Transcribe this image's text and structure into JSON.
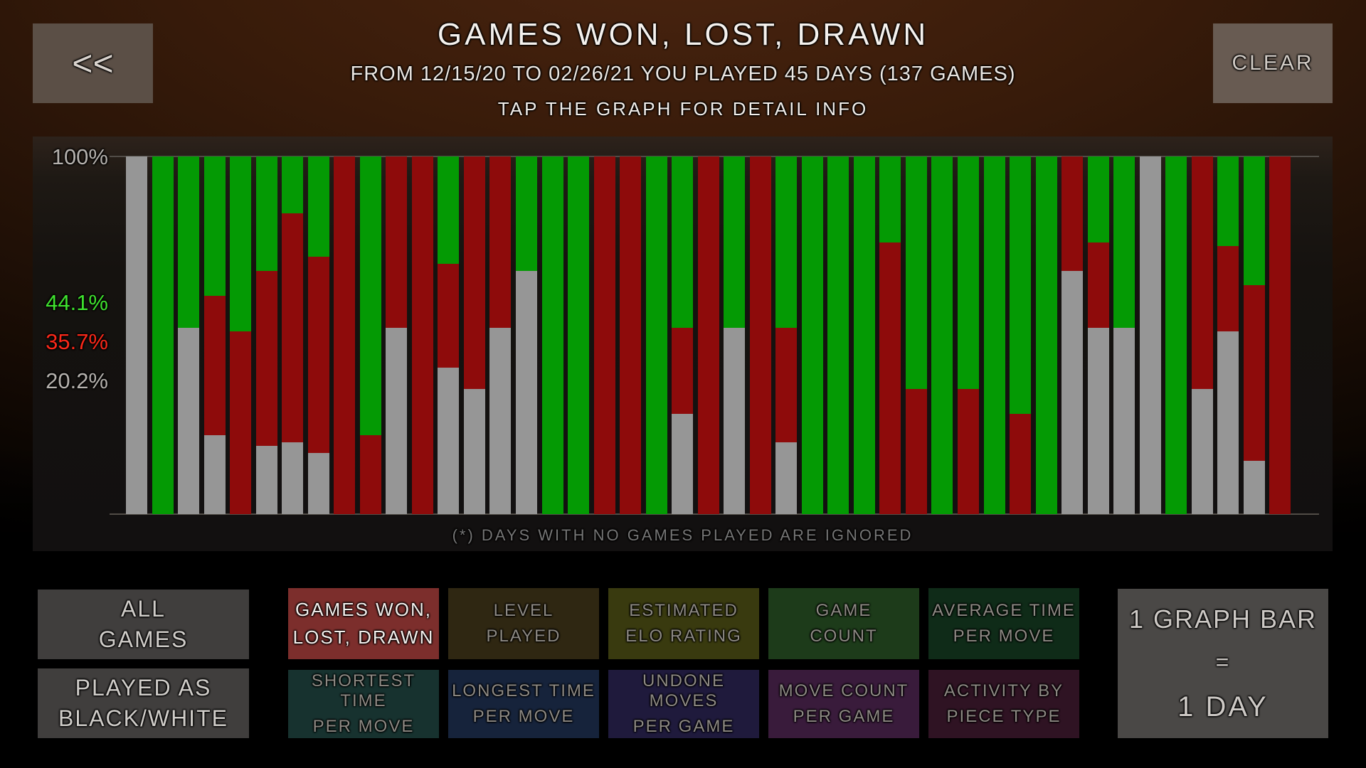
{
  "header": {
    "back_label": "<<",
    "clear_label": "CLEAR",
    "title": "GAMES WON, LOST, DRAWN",
    "subtitle": "FROM 12/15/20 TO 02/26/21 YOU PLAYED 45 DAYS (137 GAMES)",
    "hint": "TAP THE GRAPH FOR DETAIL INFO"
  },
  "chart_data": {
    "type": "bar",
    "stacked": true,
    "title": "GAMES WON, LOST, DRAWN",
    "x_unit": "1 bar = 1 day (45 days played, days with no games ignored)",
    "y_unit": "percent of that day's games",
    "ylim": [
      0,
      100
    ],
    "grid": "off",
    "y_top_label": "100%",
    "totals": {
      "won_pct": "44.1%",
      "lost_pct": "35.7%",
      "drawn_pct": "20.2%"
    },
    "totals_colors": {
      "won": "#3fe22e",
      "lost": "#fb2819",
      "drawn": "#b5b1ad"
    },
    "series_order": [
      "won",
      "lost",
      "drawn"
    ],
    "series_colors": {
      "won": "#049a04",
      "lost": "#8e0b0b",
      "drawn": "#969696"
    },
    "note": "(*) DAYS WITH NO GAMES PLAYED ARE IGNORED",
    "bars": [
      [
        0,
        0,
        100
      ],
      [
        100,
        0,
        0
      ],
      [
        48,
        0,
        52
      ],
      [
        39,
        39,
        22
      ],
      [
        49,
        51,
        0
      ],
      [
        32,
        49,
        19
      ],
      [
        16,
        64,
        20
      ],
      [
        28,
        55,
        17
      ],
      [
        0,
        100,
        0
      ],
      [
        78,
        22,
        0
      ],
      [
        0,
        48,
        52
      ],
      [
        0,
        100,
        0
      ],
      [
        30,
        29,
        41
      ],
      [
        0,
        65,
        35
      ],
      [
        0,
        48,
        52
      ],
      [
        32,
        0,
        68
      ],
      [
        100,
        0,
        0
      ],
      [
        100,
        0,
        0
      ],
      [
        0,
        100,
        0
      ],
      [
        0,
        100,
        0
      ],
      [
        100,
        0,
        0
      ],
      [
        48,
        24,
        28
      ],
      [
        0,
        100,
        0
      ],
      [
        48,
        0,
        52
      ],
      [
        0,
        100,
        0
      ],
      [
        48,
        32,
        20
      ],
      [
        100,
        0,
        0
      ],
      [
        100,
        0,
        0
      ],
      [
        100,
        0,
        0
      ],
      [
        24,
        76,
        0
      ],
      [
        65,
        35,
        0
      ],
      [
        100,
        0,
        0
      ],
      [
        65,
        35,
        0
      ],
      [
        100,
        0,
        0
      ],
      [
        72,
        28,
        0
      ],
      [
        100,
        0,
        0
      ],
      [
        0,
        32,
        68
      ],
      [
        24,
        24,
        52
      ],
      [
        48,
        0,
        52
      ],
      [
        0,
        0,
        100
      ],
      [
        100,
        0,
        0
      ],
      [
        0,
        65,
        35
      ],
      [
        25,
        24,
        51
      ],
      [
        36,
        49,
        15
      ],
      [
        0,
        100,
        0
      ]
    ]
  },
  "filters": {
    "all_games": {
      "line1": "ALL",
      "line2": "GAMES",
      "bg": "#403e3d",
      "fg": "#d0cdc9"
    },
    "played_as": {
      "line1": "PLAYED AS",
      "line2": "BLACK/WHITE",
      "bg": "#403e3d",
      "fg": "#d0cdc9"
    }
  },
  "menu": {
    "row1": [
      {
        "line1": "GAMES WON,",
        "line2": "LOST, DRAWN",
        "bg": "#7c2e2c",
        "fg": "#f3efec",
        "selected": true
      },
      {
        "line1": "LEVEL",
        "line2": "PLAYED",
        "bg": "#2f2712",
        "fg": "#8d8983"
      },
      {
        "line1": "ESTIMATED",
        "line2": "ELO RATING",
        "bg": "#393a0f",
        "fg": "#8d8983"
      },
      {
        "line1": "GAME",
        "line2": "COUNT",
        "bg": "#1d3b1a",
        "fg": "#8d8983"
      },
      {
        "line1": "AVERAGE TIME",
        "line2": "PER MOVE",
        "bg": "#0f2b18",
        "fg": "#8d8983"
      }
    ],
    "row2": [
      {
        "line1": "SHORTEST TIME",
        "line2": "PER MOVE",
        "bg": "#17322f",
        "fg": "#8d8983"
      },
      {
        "line1": "LONGEST TIME",
        "line2": "PER MOVE",
        "bg": "#16233b",
        "fg": "#8d8983"
      },
      {
        "line1": "UNDONE MOVES",
        "line2": "PER GAME",
        "bg": "#1f1a3c",
        "fg": "#8d8983"
      },
      {
        "line1": "MOVE COUNT",
        "line2": "PER GAME",
        "bg": "#391b3b",
        "fg": "#8d8983"
      },
      {
        "line1": "ACTIVITY BY",
        "line2": "PIECE TYPE",
        "bg": "#2f1323",
        "fg": "#8d8983"
      }
    ]
  },
  "legend_box": {
    "line1": "1 GRAPH BAR",
    "line2": "=",
    "line3": "1 DAY"
  }
}
